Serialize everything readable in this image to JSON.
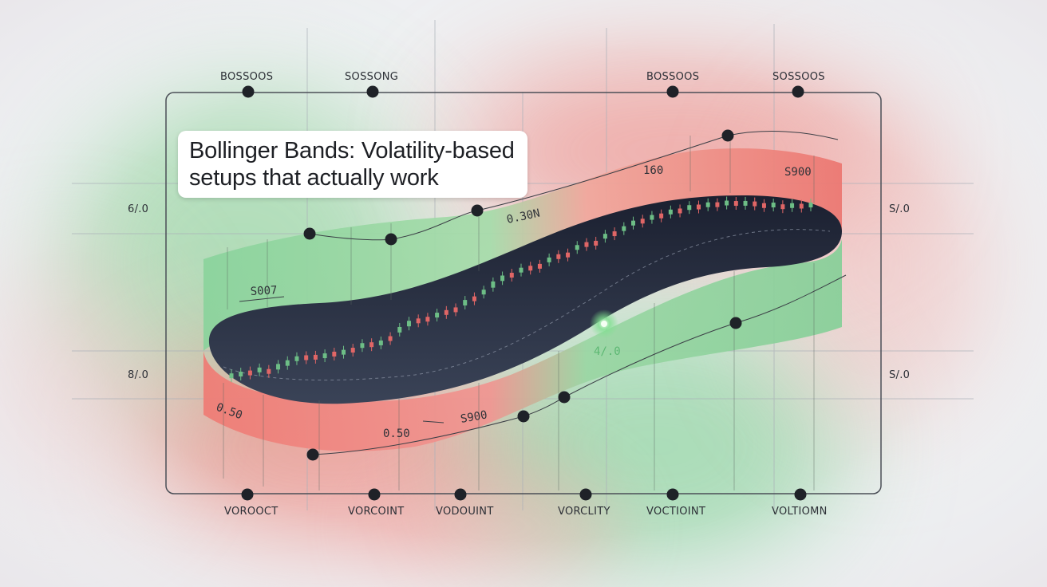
{
  "title_line1": "Bollinger Bands: Volatility-based",
  "title_line2": "setups that actually work",
  "top_labels": [
    "BOSSOOS",
    "SOSSONG",
    "BOSSOOS",
    "SOSSOOS"
  ],
  "bottom_labels": [
    "VOROOCT",
    "VORCOINT",
    "VODOUINT",
    "VORCLITY",
    "VOCTIOINT",
    "VOLTIOMN"
  ],
  "left_labels": [
    "6/.0",
    "8/.0"
  ],
  "right_labels": [
    "S/.0",
    "S/.0"
  ],
  "band_labels": {
    "upper_1": "160",
    "upper_2": "S900",
    "upper_3": "0.30N",
    "middle_1": "S007",
    "middle_2": "4/.0",
    "lower_1": "0.50",
    "lower_2": "0.50",
    "lower_3": "S900"
  },
  "colors": {
    "bull": "#6dbe86",
    "bear": "#e06666",
    "band_green": "#86cf99",
    "band_red": "#ec7a72",
    "inner_dark": "#232a3a",
    "marker": "#1f2228"
  },
  "chart_data": {
    "type": "candlestick",
    "title": "Bollinger Bands: Volatility-based setups that actually work",
    "candles": [
      {
        "dir": "up",
        "o": 0.22,
        "c": 0.34
      },
      {
        "dir": "up",
        "o": 0.3,
        "c": 0.38
      },
      {
        "dir": "down",
        "o": 0.4,
        "c": 0.3
      },
      {
        "dir": "up",
        "o": 0.34,
        "c": 0.46
      },
      {
        "dir": "down",
        "o": 0.4,
        "c": 0.3
      },
      {
        "dir": "up",
        "o": 0.36,
        "c": 0.5
      },
      {
        "dir": "up",
        "o": 0.42,
        "c": 0.56
      },
      {
        "dir": "up",
        "o": 0.5,
        "c": 0.62
      },
      {
        "dir": "down",
        "o": 0.6,
        "c": 0.5
      },
      {
        "dir": "down",
        "o": 0.56,
        "c": 0.44
      },
      {
        "dir": "up",
        "o": 0.44,
        "c": 0.54
      },
      {
        "dir": "down",
        "o": 0.52,
        "c": 0.42
      },
      {
        "dir": "up",
        "o": 0.4,
        "c": 0.5
      },
      {
        "dir": "down",
        "o": 0.48,
        "c": 0.38
      },
      {
        "dir": "up",
        "o": 0.42,
        "c": 0.52
      },
      {
        "dir": "down",
        "o": 0.46,
        "c": 0.36
      },
      {
        "dir": "up",
        "o": 0.3,
        "c": 0.42
      },
      {
        "dir": "down",
        "o": 0.44,
        "c": 0.34
      },
      {
        "dir": "up",
        "o": 0.44,
        "c": 0.58
      },
      {
        "dir": "up",
        "o": 0.5,
        "c": 0.64
      },
      {
        "dir": "down",
        "o": 0.6,
        "c": 0.48
      },
      {
        "dir": "down",
        "o": 0.54,
        "c": 0.44
      },
      {
        "dir": "up",
        "o": 0.44,
        "c": 0.54
      },
      {
        "dir": "down",
        "o": 0.5,
        "c": 0.38
      },
      {
        "dir": "down",
        "o": 0.46,
        "c": 0.36
      },
      {
        "dir": "up",
        "o": 0.4,
        "c": 0.54
      },
      {
        "dir": "down",
        "o": 0.52,
        "c": 0.42
      },
      {
        "dir": "up",
        "o": 0.46,
        "c": 0.58
      },
      {
        "dir": "up",
        "o": 0.52,
        "c": 0.68
      },
      {
        "dir": "up",
        "o": 0.58,
        "c": 0.72
      },
      {
        "dir": "down",
        "o": 0.68,
        "c": 0.56
      },
      {
        "dir": "up",
        "o": 0.6,
        "c": 0.7
      },
      {
        "dir": "down",
        "o": 0.64,
        "c": 0.54
      },
      {
        "dir": "down",
        "o": 0.58,
        "c": 0.46
      },
      {
        "dir": "up",
        "o": 0.54,
        "c": 0.64
      },
      {
        "dir": "down",
        "o": 0.62,
        "c": 0.52
      },
      {
        "dir": "down",
        "o": 0.56,
        "c": 0.44
      },
      {
        "dir": "up",
        "o": 0.54,
        "c": 0.66
      },
      {
        "dir": "down",
        "o": 0.64,
        "c": 0.52
      },
      {
        "dir": "down",
        "o": 0.58,
        "c": 0.48
      },
      {
        "dir": "up",
        "o": 0.56,
        "c": 0.68
      },
      {
        "dir": "down",
        "o": 0.66,
        "c": 0.56
      },
      {
        "dir": "up",
        "o": 0.6,
        "c": 0.72
      },
      {
        "dir": "up",
        "o": 0.66,
        "c": 0.8
      },
      {
        "dir": "down",
        "o": 0.78,
        "c": 0.66
      },
      {
        "dir": "up",
        "o": 0.7,
        "c": 0.82
      },
      {
        "dir": "down",
        "o": 0.8,
        "c": 0.7
      },
      {
        "dir": "up",
        "o": 0.74,
        "c": 0.86
      },
      {
        "dir": "down",
        "o": 0.84,
        "c": 0.74
      },
      {
        "dir": "up",
        "o": 0.78,
        "c": 0.9
      },
      {
        "dir": "down",
        "o": 0.88,
        "c": 0.78
      },
      {
        "dir": "up",
        "o": 0.82,
        "c": 0.92
      },
      {
        "dir": "down",
        "o": 0.9,
        "c": 0.8
      },
      {
        "dir": "up",
        "o": 0.84,
        "c": 0.94
      },
      {
        "dir": "down",
        "o": 0.92,
        "c": 0.82
      },
      {
        "dir": "up",
        "o": 0.82,
        "c": 0.92
      },
      {
        "dir": "down",
        "o": 0.9,
        "c": 0.8
      },
      {
        "dir": "down",
        "o": 0.84,
        "c": 0.74
      },
      {
        "dir": "up",
        "o": 0.76,
        "c": 0.86
      },
      {
        "dir": "down",
        "o": 0.8,
        "c": 0.7
      },
      {
        "dir": "up",
        "o": 0.72,
        "c": 0.84
      },
      {
        "dir": "down",
        "o": 0.82,
        "c": 0.72
      },
      {
        "dir": "up",
        "o": 0.74,
        "c": 0.86
      }
    ]
  }
}
